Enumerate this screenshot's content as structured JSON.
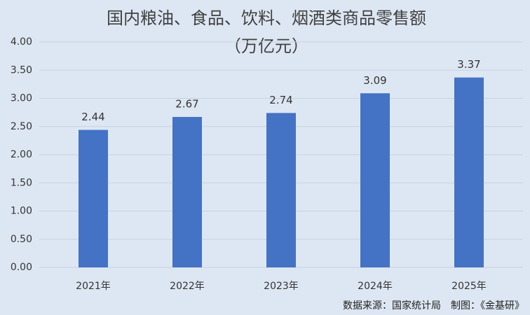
{
  "chart_data": {
    "type": "bar",
    "title": "国内粮油、食品、饮料、烟酒类商品零售额",
    "subtitle": "（万亿元）",
    "categories": [
      "2021年",
      "2022年",
      "2023年",
      "2024年",
      "2025年"
    ],
    "values": [
      2.44,
      2.67,
      2.74,
      3.09,
      3.37
    ],
    "color": "#4472c4",
    "ylim": [
      0,
      4
    ],
    "yticks": [
      {
        "value": 0,
        "label": "0.00"
      },
      {
        "value": 0.5,
        "label": "0.50"
      },
      {
        "value": 1,
        "label": "1.00"
      },
      {
        "value": 1.5,
        "label": "1.50"
      },
      {
        "value": 2,
        "label": "2.00"
      },
      {
        "value": 2.5,
        "label": "2.50"
      },
      {
        "value": 3,
        "label": "3.00"
      },
      {
        "value": 3.5,
        "label": "3.50"
      },
      {
        "value": 4,
        "label": "4.00"
      }
    ],
    "grid": true,
    "source": "数据来源：国家统计局　制图：《金基研》"
  }
}
